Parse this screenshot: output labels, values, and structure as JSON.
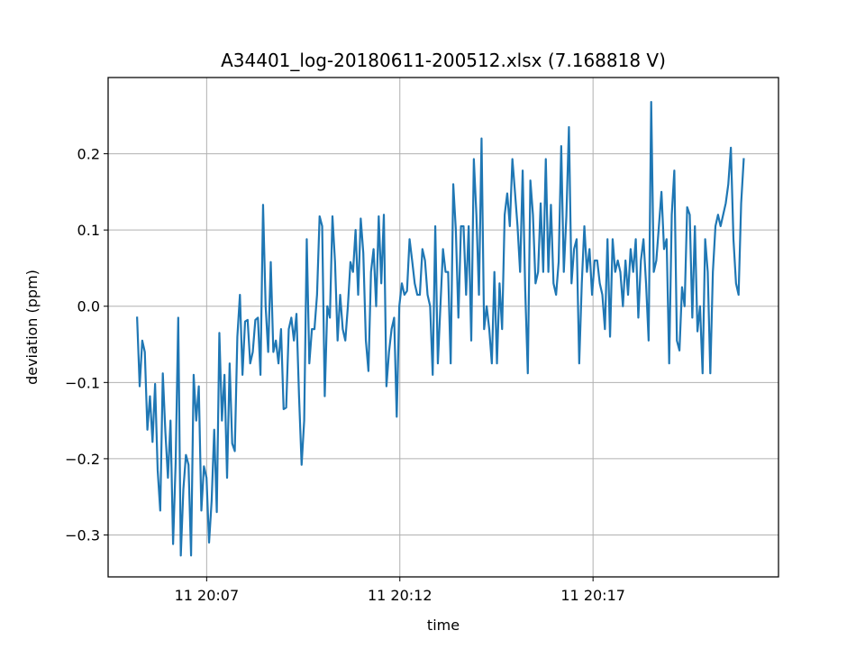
{
  "chart_data": {
    "type": "line",
    "title": "A34401_log-20180611-200512.xlsx (7.168818 V)",
    "xlabel": "time",
    "ylabel": "deviation (ppm)",
    "grid": true,
    "line_color": "#1f77b4",
    "x_axis": {
      "start_time": "20:05:12",
      "end_time": "20:20:54",
      "range": [
        "20:04:27",
        "20:21:48"
      ],
      "ticks": [
        {
          "time": "20:07:00",
          "label": "11 20:07"
        },
        {
          "time": "20:12:00",
          "label": "11 20:12"
        },
        {
          "time": "20:17:00",
          "label": "11 20:17"
        }
      ]
    },
    "y_axis": {
      "range": [
        -0.355,
        0.3
      ],
      "ticks": [
        {
          "value": -0.3,
          "label": "−0.3"
        },
        {
          "value": -0.2,
          "label": "−0.2"
        },
        {
          "value": -0.1,
          "label": "−0.1"
        },
        {
          "value": 0.0,
          "label": "0.0"
        },
        {
          "value": 0.1,
          "label": "0.1"
        },
        {
          "value": 0.2,
          "label": "0.2"
        }
      ]
    },
    "series": [
      {
        "values": [
          -0.015,
          -0.105,
          -0.045,
          -0.06,
          -0.162,
          -0.118,
          -0.178,
          -0.102,
          -0.215,
          -0.268,
          -0.088,
          -0.165,
          -0.225,
          -0.15,
          -0.312,
          -0.205,
          -0.015,
          -0.327,
          -0.24,
          -0.195,
          -0.208,
          -0.327,
          -0.09,
          -0.15,
          -0.105,
          -0.268,
          -0.21,
          -0.225,
          -0.31,
          -0.255,
          -0.162,
          -0.27,
          -0.035,
          -0.15,
          -0.09,
          -0.225,
          -0.075,
          -0.18,
          -0.19,
          -0.04,
          0.015,
          -0.09,
          -0.02,
          -0.018,
          -0.075,
          -0.06,
          -0.018,
          -0.015,
          -0.09,
          0.133,
          0.0,
          -0.06,
          0.058,
          -0.06,
          -0.045,
          -0.075,
          -0.03,
          -0.135,
          -0.133,
          -0.03,
          -0.015,
          -0.045,
          -0.01,
          -0.118,
          -0.208,
          -0.15,
          0.088,
          -0.075,
          -0.03,
          -0.03,
          0.015,
          0.118,
          0.105,
          -0.118,
          0.0,
          -0.015,
          0.118,
          0.058,
          -0.045,
          0.015,
          -0.03,
          -0.045,
          0.0,
          0.058,
          0.045,
          0.1,
          0.015,
          0.115,
          0.07,
          -0.045,
          -0.085,
          0.045,
          0.075,
          0.0,
          0.118,
          0.03,
          0.12,
          -0.105,
          -0.06,
          -0.03,
          -0.015,
          -0.145,
          0.0,
          0.03,
          0.015,
          0.02,
          0.088,
          0.06,
          0.03,
          0.015,
          0.015,
          0.075,
          0.06,
          0.015,
          0.0,
          -0.09,
          0.105,
          -0.075,
          0.0,
          0.075,
          0.045,
          0.045,
          -0.075,
          0.16,
          0.1,
          -0.015,
          0.105,
          0.105,
          0.015,
          0.105,
          -0.045,
          0.193,
          0.12,
          0.015,
          0.22,
          -0.03,
          0.0,
          -0.03,
          -0.075,
          0.045,
          -0.075,
          0.03,
          -0.03,
          0.12,
          0.148,
          0.105,
          0.193,
          0.15,
          0.105,
          0.045,
          0.178,
          0.02,
          -0.088,
          0.165,
          0.12,
          0.03,
          0.045,
          0.135,
          0.045,
          0.193,
          0.045,
          0.133,
          0.03,
          0.015,
          0.058,
          0.21,
          0.045,
          0.118,
          0.235,
          0.03,
          0.075,
          0.088,
          -0.075,
          0.03,
          0.105,
          0.045,
          0.075,
          0.015,
          0.06,
          0.06,
          0.03,
          0.015,
          -0.03,
          0.088,
          -0.04,
          0.088,
          0.045,
          0.06,
          0.045,
          0.0,
          0.06,
          0.015,
          0.075,
          0.045,
          0.088,
          -0.015,
          0.06,
          0.088,
          0.03,
          -0.045,
          0.268,
          0.045,
          0.06,
          0.105,
          0.15,
          0.075,
          0.088,
          -0.075,
          0.12,
          0.178,
          -0.045,
          -0.058,
          0.025,
          0.0,
          0.13,
          0.12,
          -0.015,
          0.105,
          -0.033,
          0.0,
          -0.088,
          0.088,
          0.045,
          -0.088,
          0.045,
          0.105,
          0.12,
          0.105,
          0.12,
          0.135,
          0.16,
          0.208,
          0.088,
          0.03,
          0.015,
          0.135,
          0.193
        ]
      }
    ]
  }
}
